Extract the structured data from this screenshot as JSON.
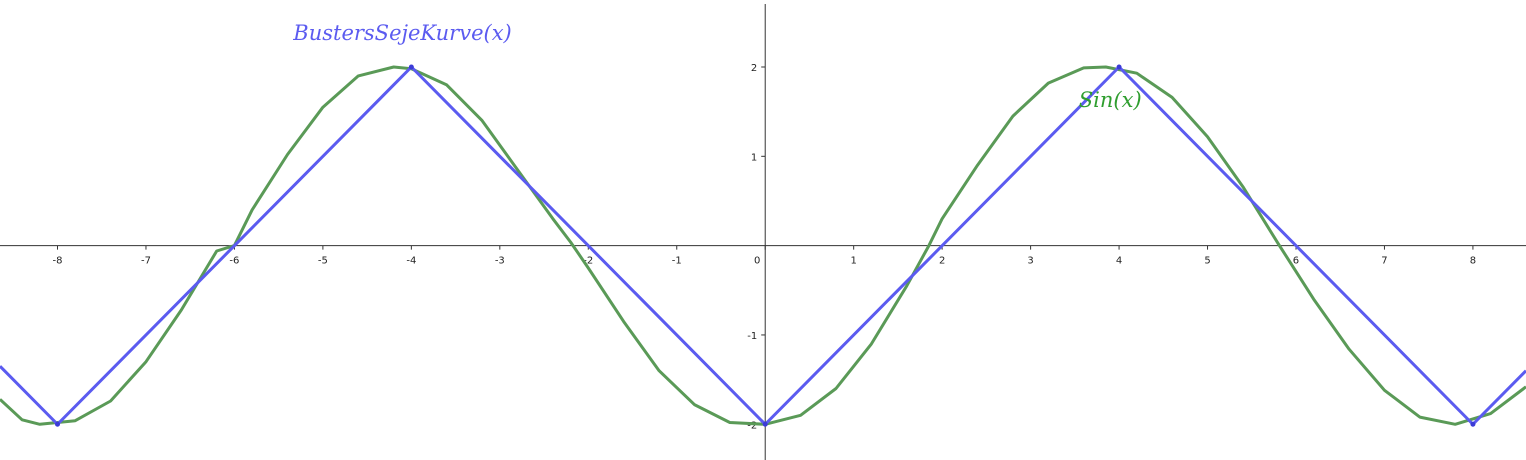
{
  "chart_data": {
    "type": "line",
    "title": "",
    "xlabel": "",
    "ylabel": "",
    "xlim": [
      -8.65,
      8.6
    ],
    "ylim": [
      -2.4,
      2.75
    ],
    "grid": false,
    "x_ticks": [
      -8,
      -7,
      -6,
      -5,
      -4,
      -3,
      -2,
      -1,
      0,
      1,
      2,
      3,
      4,
      5,
      6,
      7,
      8
    ],
    "x_tick_labels": [
      "-8",
      "-7",
      "-6",
      "-5",
      "-4",
      "-3",
      "-2",
      "-1",
      "0",
      "1",
      "2",
      "3",
      "4",
      "5",
      "6",
      "7",
      "8"
    ],
    "y_ticks": [
      -2,
      -1,
      1,
      2
    ],
    "y_tick_labels": [
      "-2",
      "-1",
      "1",
      "2"
    ],
    "series": [
      {
        "name": "BustersSejeKurve(x)",
        "color": "#5b5bf0",
        "kind": "polyline",
        "x": [
          -8.65,
          -8,
          -4,
          0,
          4,
          8,
          8.6
        ],
        "y": [
          -1.35,
          -2,
          2,
          -2,
          2,
          -2,
          -1.4
        ]
      },
      {
        "name": "Sin(x)",
        "color": "#5a9a57",
        "kind": "function",
        "x_range": [
          -8.65,
          8.6
        ],
        "samples": [
          [
            -8.65,
            -1.72
          ],
          [
            -8.4,
            -1.95
          ],
          [
            -8.2,
            -2.0
          ],
          [
            -7.8,
            -1.96
          ],
          [
            -7.4,
            -1.74
          ],
          [
            -7.0,
            -1.3
          ],
          [
            -6.6,
            -0.72
          ],
          [
            -6.2,
            -0.06
          ],
          [
            -6.0,
            0.0
          ],
          [
            -5.8,
            0.4
          ],
          [
            -5.4,
            1.02
          ],
          [
            -5.0,
            1.55
          ],
          [
            -4.6,
            1.9
          ],
          [
            -4.2,
            2.0
          ],
          [
            -4.0,
            1.98
          ],
          [
            -3.6,
            1.8
          ],
          [
            -3.2,
            1.4
          ],
          [
            -2.8,
            0.85
          ],
          [
            -2.4,
            0.3
          ],
          [
            -2.2,
            0.04
          ],
          [
            -2.0,
            -0.25
          ],
          [
            -1.6,
            -0.85
          ],
          [
            -1.2,
            -1.4
          ],
          [
            -0.8,
            -1.78
          ],
          [
            -0.4,
            -1.98
          ],
          [
            0.0,
            -2.0
          ],
          [
            0.4,
            -1.9
          ],
          [
            0.8,
            -1.6
          ],
          [
            1.2,
            -1.1
          ],
          [
            1.6,
            -0.45
          ],
          [
            1.85,
            0.0
          ],
          [
            2.0,
            0.3
          ],
          [
            2.4,
            0.9
          ],
          [
            2.8,
            1.45
          ],
          [
            3.2,
            1.82
          ],
          [
            3.6,
            1.99
          ],
          [
            3.85,
            2.0
          ],
          [
            4.2,
            1.93
          ],
          [
            4.6,
            1.66
          ],
          [
            5.0,
            1.22
          ],
          [
            5.4,
            0.66
          ],
          [
            5.8,
            0.02
          ],
          [
            6.2,
            -0.6
          ],
          [
            6.6,
            -1.16
          ],
          [
            7.0,
            -1.62
          ],
          [
            7.4,
            -1.92
          ],
          [
            7.8,
            -2.0
          ],
          [
            8.2,
            -1.88
          ],
          [
            8.6,
            -1.58
          ]
        ]
      }
    ],
    "vertices": [
      [
        -8,
        -2
      ],
      [
        -4,
        2
      ],
      [
        0,
        -2
      ],
      [
        4,
        2
      ],
      [
        8,
        -2
      ]
    ],
    "annotations": [
      {
        "text": "BustersSejeKurve(x)",
        "x": -4.1,
        "y": 2.3,
        "color": "#5b5bf0"
      },
      {
        "text": "Sin(x)",
        "x": 3.9,
        "y": 1.55,
        "color": "#2f9e2f"
      }
    ]
  }
}
